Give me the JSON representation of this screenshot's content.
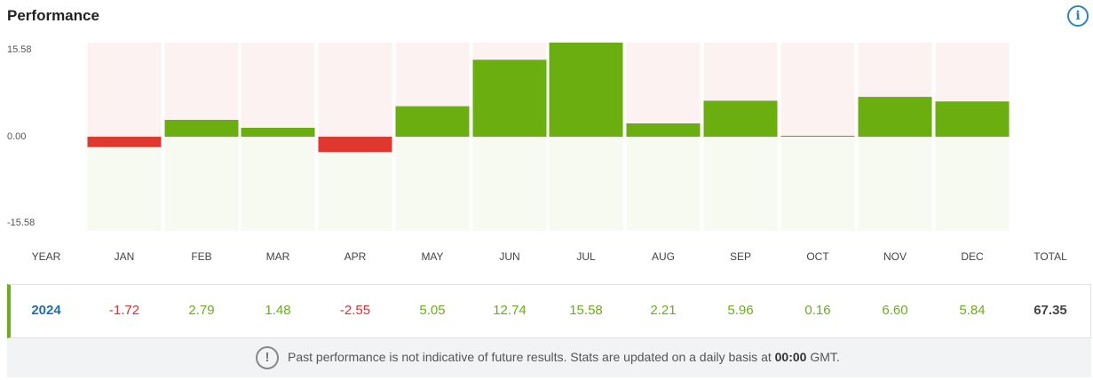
{
  "header": {
    "title": "Performance",
    "info_icon": "info-icon"
  },
  "chart_data": {
    "type": "bar",
    "categories": [
      "JAN",
      "FEB",
      "MAR",
      "APR",
      "MAY",
      "JUN",
      "JUL",
      "AUG",
      "SEP",
      "OCT",
      "NOV",
      "DEC"
    ],
    "values": [
      -1.72,
      2.79,
      1.48,
      -2.55,
      5.05,
      12.74,
      15.58,
      2.21,
      5.96,
      0.16,
      6.6,
      5.84
    ],
    "ylim": [
      -15.58,
      15.58
    ],
    "y_tick_labels": [
      "15.58",
      "0.00",
      "-15.58"
    ],
    "colors": {
      "positive": "#6aae0f",
      "negative": "#e0372f",
      "bg_top": "#fdf2f2",
      "bg_bottom": "#f6faf0"
    }
  },
  "table": {
    "headers": [
      "YEAR",
      "JAN",
      "FEB",
      "MAR",
      "APR",
      "MAY",
      "JUN",
      "JUL",
      "AUG",
      "SEP",
      "OCT",
      "NOV",
      "DEC",
      "TOTAL"
    ],
    "row": {
      "year": "2024",
      "values": [
        "-1.72",
        "2.79",
        "1.48",
        "-2.55",
        "5.05",
        "12.74",
        "15.58",
        "2.21",
        "5.96",
        "0.16",
        "6.60",
        "5.84"
      ],
      "total": "67.35"
    }
  },
  "footer": {
    "icon": "warning-icon",
    "note_before": "Past performance is not indicative of future results. Stats are updated on a daily basis at ",
    "note_time": "00:00",
    "note_after": " GMT."
  }
}
